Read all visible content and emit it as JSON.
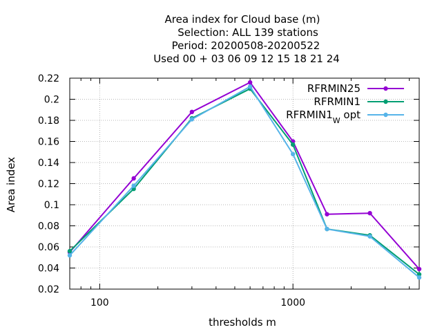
{
  "chart_data": {
    "type": "line",
    "title_lines": [
      "Area index  for Cloud base (m)",
      "Selection: ALL    139 stations",
      "Period: 20200508-20200522",
      "Used  00 + 03 06 09 12 15 18 21 24"
    ],
    "xlabel": "thresholds m",
    "ylabel": "Area index",
    "x_scale": "log",
    "xlim": [
      70,
      4500
    ],
    "ylim": [
      0.02,
      0.22
    ],
    "x_ticks": [
      100,
      1000
    ],
    "x_tick_labels": [
      "100",
      "1000"
    ],
    "y_ticks": [
      0.02,
      0.04,
      0.06,
      0.08,
      0.1,
      0.12,
      0.14,
      0.16,
      0.18,
      0.2,
      0.22
    ],
    "y_tick_labels": [
      "0.02",
      "0.04",
      "0.06",
      "0.08",
      "0.1",
      "0.12",
      "0.14",
      "0.16",
      "0.18",
      "0.2",
      "0.22"
    ],
    "grid": true,
    "legend_position": "top-right",
    "x": [
      70,
      150,
      300,
      600,
      1000,
      1500,
      2500,
      4500
    ],
    "series": [
      {
        "name": "RFRMIN25",
        "color": "#9400d3",
        "values": [
          0.055,
          0.125,
          0.188,
          0.216,
          0.16,
          0.091,
          0.092,
          0.039
        ]
      },
      {
        "name": "RFRMIN1",
        "color": "#009e73",
        "values": [
          0.056,
          0.115,
          0.182,
          0.21,
          0.157,
          0.077,
          0.071,
          0.034
        ]
      },
      {
        "name": "RFRMIN1",
        "name_sub": "W",
        "name_suffix": "opt",
        "color": "#56b4e9",
        "values": [
          0.052,
          0.118,
          0.181,
          0.212,
          0.148,
          0.077,
          0.07,
          0.031
        ]
      }
    ]
  }
}
